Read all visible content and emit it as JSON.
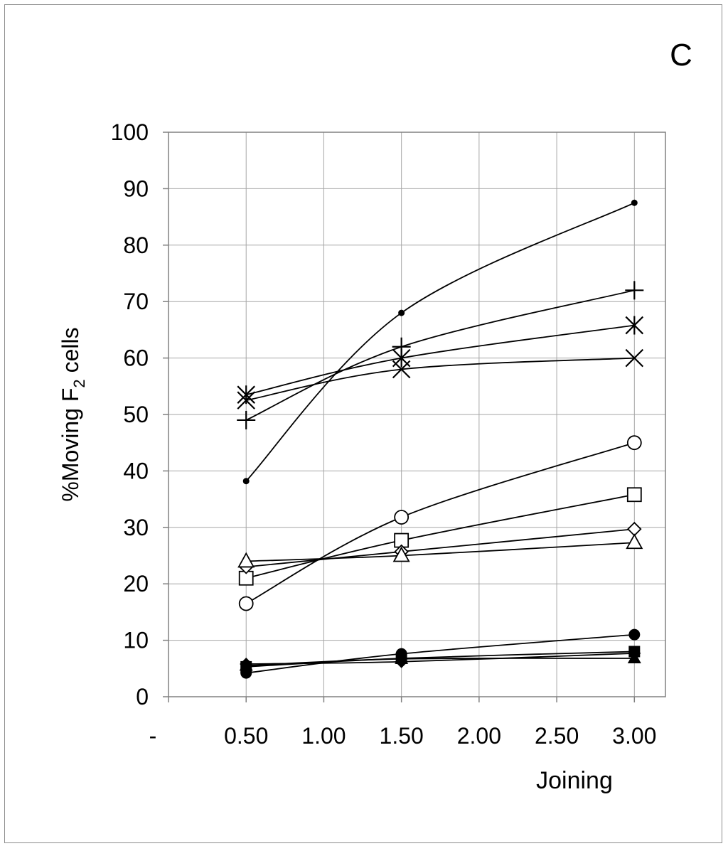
{
  "panel_label": "C",
  "chart_data": {
    "type": "line",
    "title": "",
    "xlabel": "Joining",
    "ylabel": "%Moving F2 cells",
    "ylabel_main": "%Moving F",
    "ylabel_sub": "2",
    "ylabel_tail": " cells",
    "xlim": [
      0,
      3.2
    ],
    "ylim": [
      0,
      100
    ],
    "grid": true,
    "x_ticks": [
      0,
      0.5,
      1.0,
      1.5,
      2.0,
      2.5,
      3.0
    ],
    "x_tick_labels": [
      "-",
      "0.50",
      "1.00",
      "1.50",
      "2.00",
      "2.50",
      "3.00"
    ],
    "y_ticks": [
      0,
      10,
      20,
      30,
      40,
      50,
      60,
      70,
      80,
      90,
      100
    ],
    "y_tick_labels": [
      "0",
      "10",
      "20",
      "30",
      "40",
      "50",
      "60",
      "70",
      "80",
      "90",
      "100"
    ],
    "x": [
      0.5,
      1.5,
      3.0
    ],
    "series": [
      {
        "name": "small-dot",
        "marker": "small-dot",
        "values": [
          38.2,
          68.0,
          87.5
        ]
      },
      {
        "name": "plus",
        "marker": "plus",
        "values": [
          49.0,
          62.0,
          72.0
        ]
      },
      {
        "name": "asterisk",
        "marker": "asterisk",
        "values": [
          53.5,
          60.0,
          65.8
        ]
      },
      {
        "name": "x-cross",
        "marker": "x",
        "values": [
          52.5,
          58.0,
          60.0
        ]
      },
      {
        "name": "open-circle",
        "marker": "open-circle",
        "values": [
          16.5,
          31.8,
          45.0
        ]
      },
      {
        "name": "open-square",
        "marker": "open-square",
        "values": [
          21.0,
          27.7,
          35.8
        ]
      },
      {
        "name": "open-diamond",
        "marker": "open-diamond",
        "values": [
          23.0,
          25.7,
          29.7
        ]
      },
      {
        "name": "open-triangle",
        "marker": "open-triangle",
        "values": [
          24.0,
          25.0,
          27.3
        ]
      },
      {
        "name": "filled-circle",
        "marker": "filled-circle",
        "values": [
          4.2,
          7.6,
          11.0
        ]
      },
      {
        "name": "filled-square",
        "marker": "filled-square",
        "values": [
          5.3,
          6.8,
          8.0
        ]
      },
      {
        "name": "filled-diamond",
        "marker": "filled-diamond",
        "values": [
          5.8,
          6.2,
          7.7
        ]
      },
      {
        "name": "filled-triangle",
        "marker": "filled-triangle",
        "values": [
          5.5,
          6.7,
          6.8
        ]
      }
    ]
  }
}
